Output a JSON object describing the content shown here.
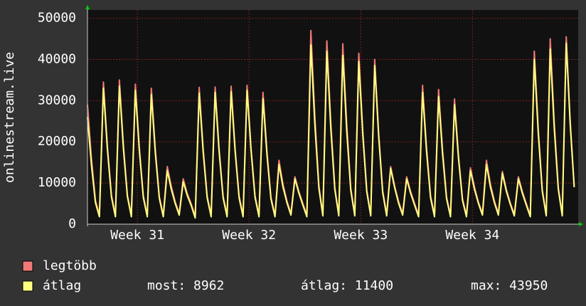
{
  "chart_data": {
    "type": "line",
    "ylabel": "onlinestream.live",
    "ylim": [
      0,
      52000
    ],
    "yticks": [
      0,
      10000,
      20000,
      30000,
      40000,
      50000
    ],
    "xlim": [
      0,
      123
    ],
    "xticks": [
      {
        "value": 12.5,
        "label": "Week 31"
      },
      {
        "value": 40.5,
        "label": "Week 32"
      },
      {
        "value": 68.5,
        "label": "Week 33"
      },
      {
        "value": 96.5,
        "label": "Week 34"
      }
    ],
    "grid": true,
    "series": [
      {
        "name": "legtöbb",
        "color": "#f07878",
        "values": [
          29000,
          15900,
          5800,
          2200,
          34500,
          19000,
          7000,
          2200,
          35000,
          19300,
          7100,
          2200,
          34000,
          18700,
          6900,
          2200,
          33000,
          18200,
          6700,
          2200,
          14000,
          9200,
          5400,
          2600,
          11000,
          7500,
          4900,
          1900,
          33200,
          18300,
          6800,
          2200,
          33300,
          18300,
          6800,
          2200,
          33500,
          18400,
          6800,
          2200,
          33700,
          18500,
          6900,
          2200,
          32000,
          17600,
          6500,
          2200,
          15500,
          9700,
          5600,
          2600,
          11500,
          7900,
          5000,
          2200,
          47000,
          25900,
          9300,
          2400,
          44500,
          24500,
          8900,
          2400,
          43800,
          24100,
          8800,
          2400,
          41500,
          22800,
          8300,
          2400,
          40000,
          22000,
          8100,
          2400,
          14000,
          9200,
          5400,
          2600,
          11500,
          7900,
          5000,
          2200,
          33700,
          18500,
          6900,
          2200,
          32700,
          18000,
          6600,
          2200,
          30400,
          16700,
          6200,
          2200,
          13700,
          9000,
          5300,
          2600,
          15500,
          9700,
          5600,
          2600,
          12800,
          8400,
          5100,
          2400,
          11500,
          7900,
          5000,
          2200,
          42000,
          23100,
          8400,
          2400,
          45000,
          24800,
          9000,
          2400,
          45500,
          25000,
          9300
        ]
      },
      {
        "name": "átlag",
        "color": "#ffff80",
        "values": [
          26000,
          14300,
          5200,
          1800,
          33000,
          18150,
          6600,
          1800,
          33500,
          18400,
          6700,
          1800,
          32500,
          17900,
          6500,
          1800,
          31500,
          17300,
          6300,
          1800,
          13000,
          8500,
          5000,
          2200,
          10300,
          7000,
          4500,
          1500,
          31800,
          17500,
          6400,
          1800,
          32000,
          17600,
          6400,
          1800,
          32200,
          17700,
          6400,
          1800,
          32500,
          17900,
          6500,
          1800,
          30500,
          16800,
          6100,
          1800,
          14500,
          9000,
          5200,
          2200,
          11000,
          7500,
          4600,
          1800,
          43500,
          23900,
          8700,
          2000,
          42000,
          23100,
          8400,
          2000,
          41000,
          22500,
          8200,
          2000,
          39500,
          21700,
          7900,
          2000,
          38500,
          21200,
          7700,
          2000,
          13500,
          8800,
          5000,
          2200,
          11000,
          7500,
          4600,
          1800,
          32000,
          17600,
          6400,
          1800,
          31000,
          17000,
          6200,
          1800,
          29000,
          16000,
          5800,
          1800,
          13000,
          8500,
          5000,
          2200,
          14500,
          9000,
          5200,
          2200,
          12300,
          8000,
          4800,
          2000,
          11000,
          7500,
          4600,
          1800,
          40000,
          22000,
          8000,
          2000,
          42500,
          23400,
          8500,
          2000,
          43950,
          24200,
          8962
        ]
      }
    ],
    "stats": [
      "most: 8962",
      "átlag: 11400",
      "max: 43950"
    ]
  }
}
